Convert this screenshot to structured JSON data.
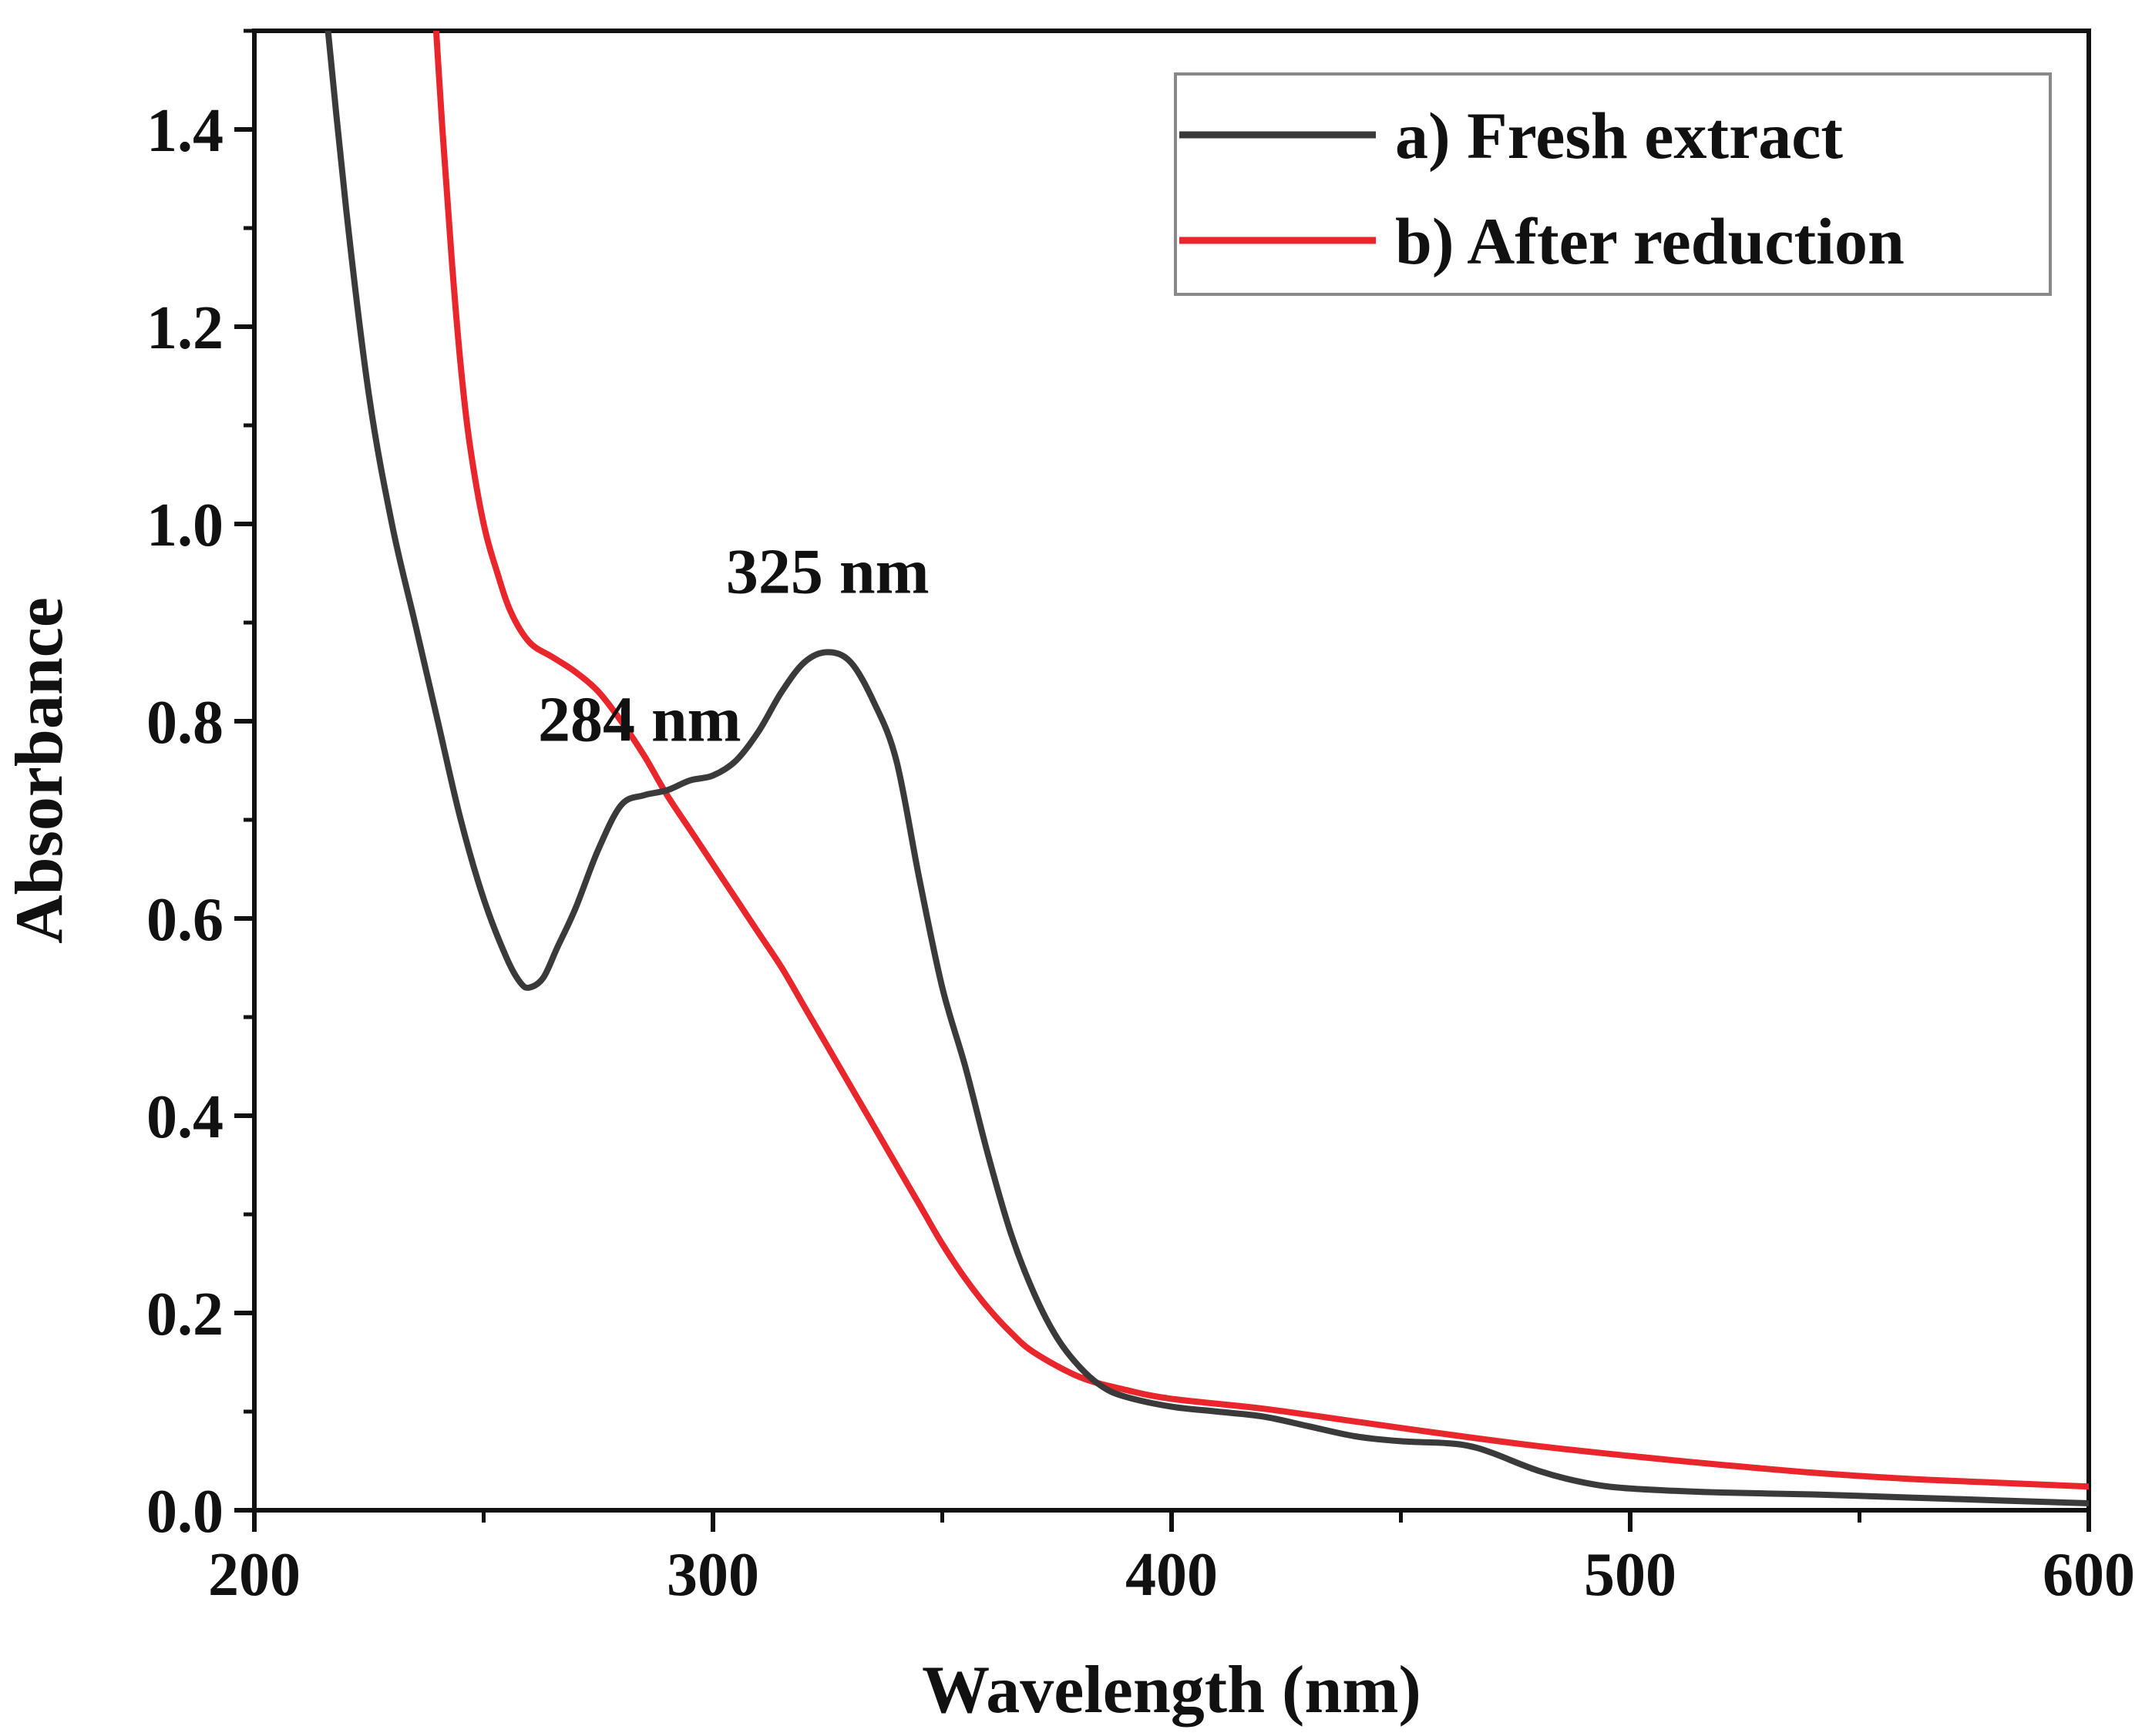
{
  "chart_data": {
    "type": "line",
    "title": "",
    "xlabel": "Wavelength (nm)",
    "ylabel": "Absorbance",
    "xlim": [
      200,
      600
    ],
    "ylim": [
      0.0,
      1.5
    ],
    "x_ticks": [
      200,
      300,
      400,
      500,
      600
    ],
    "x_tick_labels": [
      "200",
      "300",
      "400",
      "500",
      "600"
    ],
    "y_ticks": [
      0.0,
      0.2,
      0.4,
      0.6,
      0.8,
      1.0,
      1.2,
      1.4
    ],
    "y_tick_labels": [
      "0.0",
      "0.2",
      "0.4",
      "0.6",
      "0.8",
      "1.0",
      "1.2",
      "1.4"
    ],
    "grid": false,
    "legend_position": "top-right",
    "annotations": [
      {
        "text": "325 nm",
        "x": 325,
        "y": 0.93
      },
      {
        "text": "284 nm",
        "x": 284,
        "y": 0.78
      }
    ],
    "series": [
      {
        "name": "a) Fresh extract",
        "color": "#3a3a3a",
        "x": [
          215,
          220,
          225,
          230,
          235,
          240,
          245,
          250,
          255,
          258,
          260,
          263,
          266,
          270,
          275,
          280,
          285,
          290,
          295,
          300,
          305,
          310,
          315,
          320,
          325,
          330,
          335,
          340,
          345,
          350,
          355,
          360,
          365,
          370,
          375,
          380,
          385,
          390,
          400,
          410,
          420,
          430,
          440,
          450,
          460,
          465,
          470,
          480,
          490,
          500,
          520,
          540,
          560,
          580,
          600
        ],
        "y": [
          1.55,
          1.32,
          1.13,
          1.0,
          0.9,
          0.8,
          0.7,
          0.62,
          0.56,
          0.535,
          0.53,
          0.54,
          0.57,
          0.61,
          0.67,
          0.715,
          0.725,
          0.73,
          0.74,
          0.745,
          0.76,
          0.79,
          0.83,
          0.86,
          0.87,
          0.86,
          0.82,
          0.76,
          0.64,
          0.53,
          0.45,
          0.36,
          0.28,
          0.22,
          0.175,
          0.145,
          0.125,
          0.115,
          0.105,
          0.1,
          0.095,
          0.085,
          0.075,
          0.07,
          0.068,
          0.065,
          0.058,
          0.04,
          0.028,
          0.022,
          0.018,
          0.016,
          0.013,
          0.01,
          0.007
        ]
      },
      {
        "name": "b) After reduction",
        "color": "#e8262b",
        "x": [
          239,
          241,
          243,
          245,
          247,
          250,
          253,
          256,
          260,
          265,
          270,
          275,
          280,
          285,
          290,
          295,
          300,
          305,
          310,
          315,
          320,
          325,
          330,
          335,
          340,
          345,
          350,
          355,
          360,
          365,
          370,
          380,
          390,
          400,
          420,
          440,
          460,
          480,
          500,
          520,
          540,
          560,
          580,
          600
        ],
        "y": [
          1.55,
          1.4,
          1.27,
          1.16,
          1.08,
          1.0,
          0.95,
          0.91,
          0.88,
          0.865,
          0.85,
          0.83,
          0.8,
          0.765,
          0.725,
          0.69,
          0.655,
          0.62,
          0.585,
          0.55,
          0.51,
          0.47,
          0.43,
          0.39,
          0.35,
          0.31,
          0.27,
          0.235,
          0.205,
          0.18,
          0.16,
          0.135,
          0.122,
          0.113,
          0.103,
          0.09,
          0.077,
          0.065,
          0.055,
          0.046,
          0.038,
          0.032,
          0.028,
          0.024
        ]
      }
    ]
  }
}
